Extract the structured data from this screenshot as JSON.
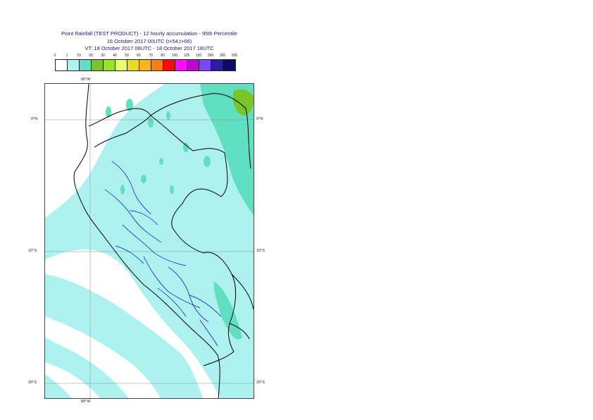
{
  "title": {
    "line1": "Point Rainfall (TEST PRODUCT) - 12 hourly accumulation - 95th Percentile",
    "line2": "16 October 2017 00UTC (t+54,t+66)",
    "line3": "VT: 18 October 2017 06UTC - 18 October 2017 18UTC"
  },
  "legend": {
    "values": [
      "0",
      "1",
      "10",
      "20",
      "30",
      "40",
      "50",
      "60",
      "70",
      "80",
      "100",
      "125",
      "150",
      "200",
      "300",
      "500"
    ],
    "colors": [
      "#ffffff",
      "#aef2f0",
      "#60e0c0",
      "#79c62a",
      "#96e71e",
      "#e8fe6e",
      "#e7df1e",
      "#fdb31b",
      "#fd7e10",
      "#fb0a09",
      "#fd0efd",
      "#c106d3",
      "#7a48f4",
      "#2b1da7",
      "#0e0a6a"
    ]
  },
  "map": {
    "lon_top": "80°W",
    "lon_bottom": "80°W",
    "lat_left": [
      "0°N",
      "10°S",
      "20°S"
    ],
    "lat_right": [
      "0°N",
      "10°S",
      "20°S"
    ],
    "region": "Peru",
    "colors": {
      "coast": "#000000",
      "province": "#0000cc",
      "grid": "#888888",
      "light": "#aef2f0",
      "mid": "#60e0c0",
      "green": "#79c62a"
    }
  }
}
